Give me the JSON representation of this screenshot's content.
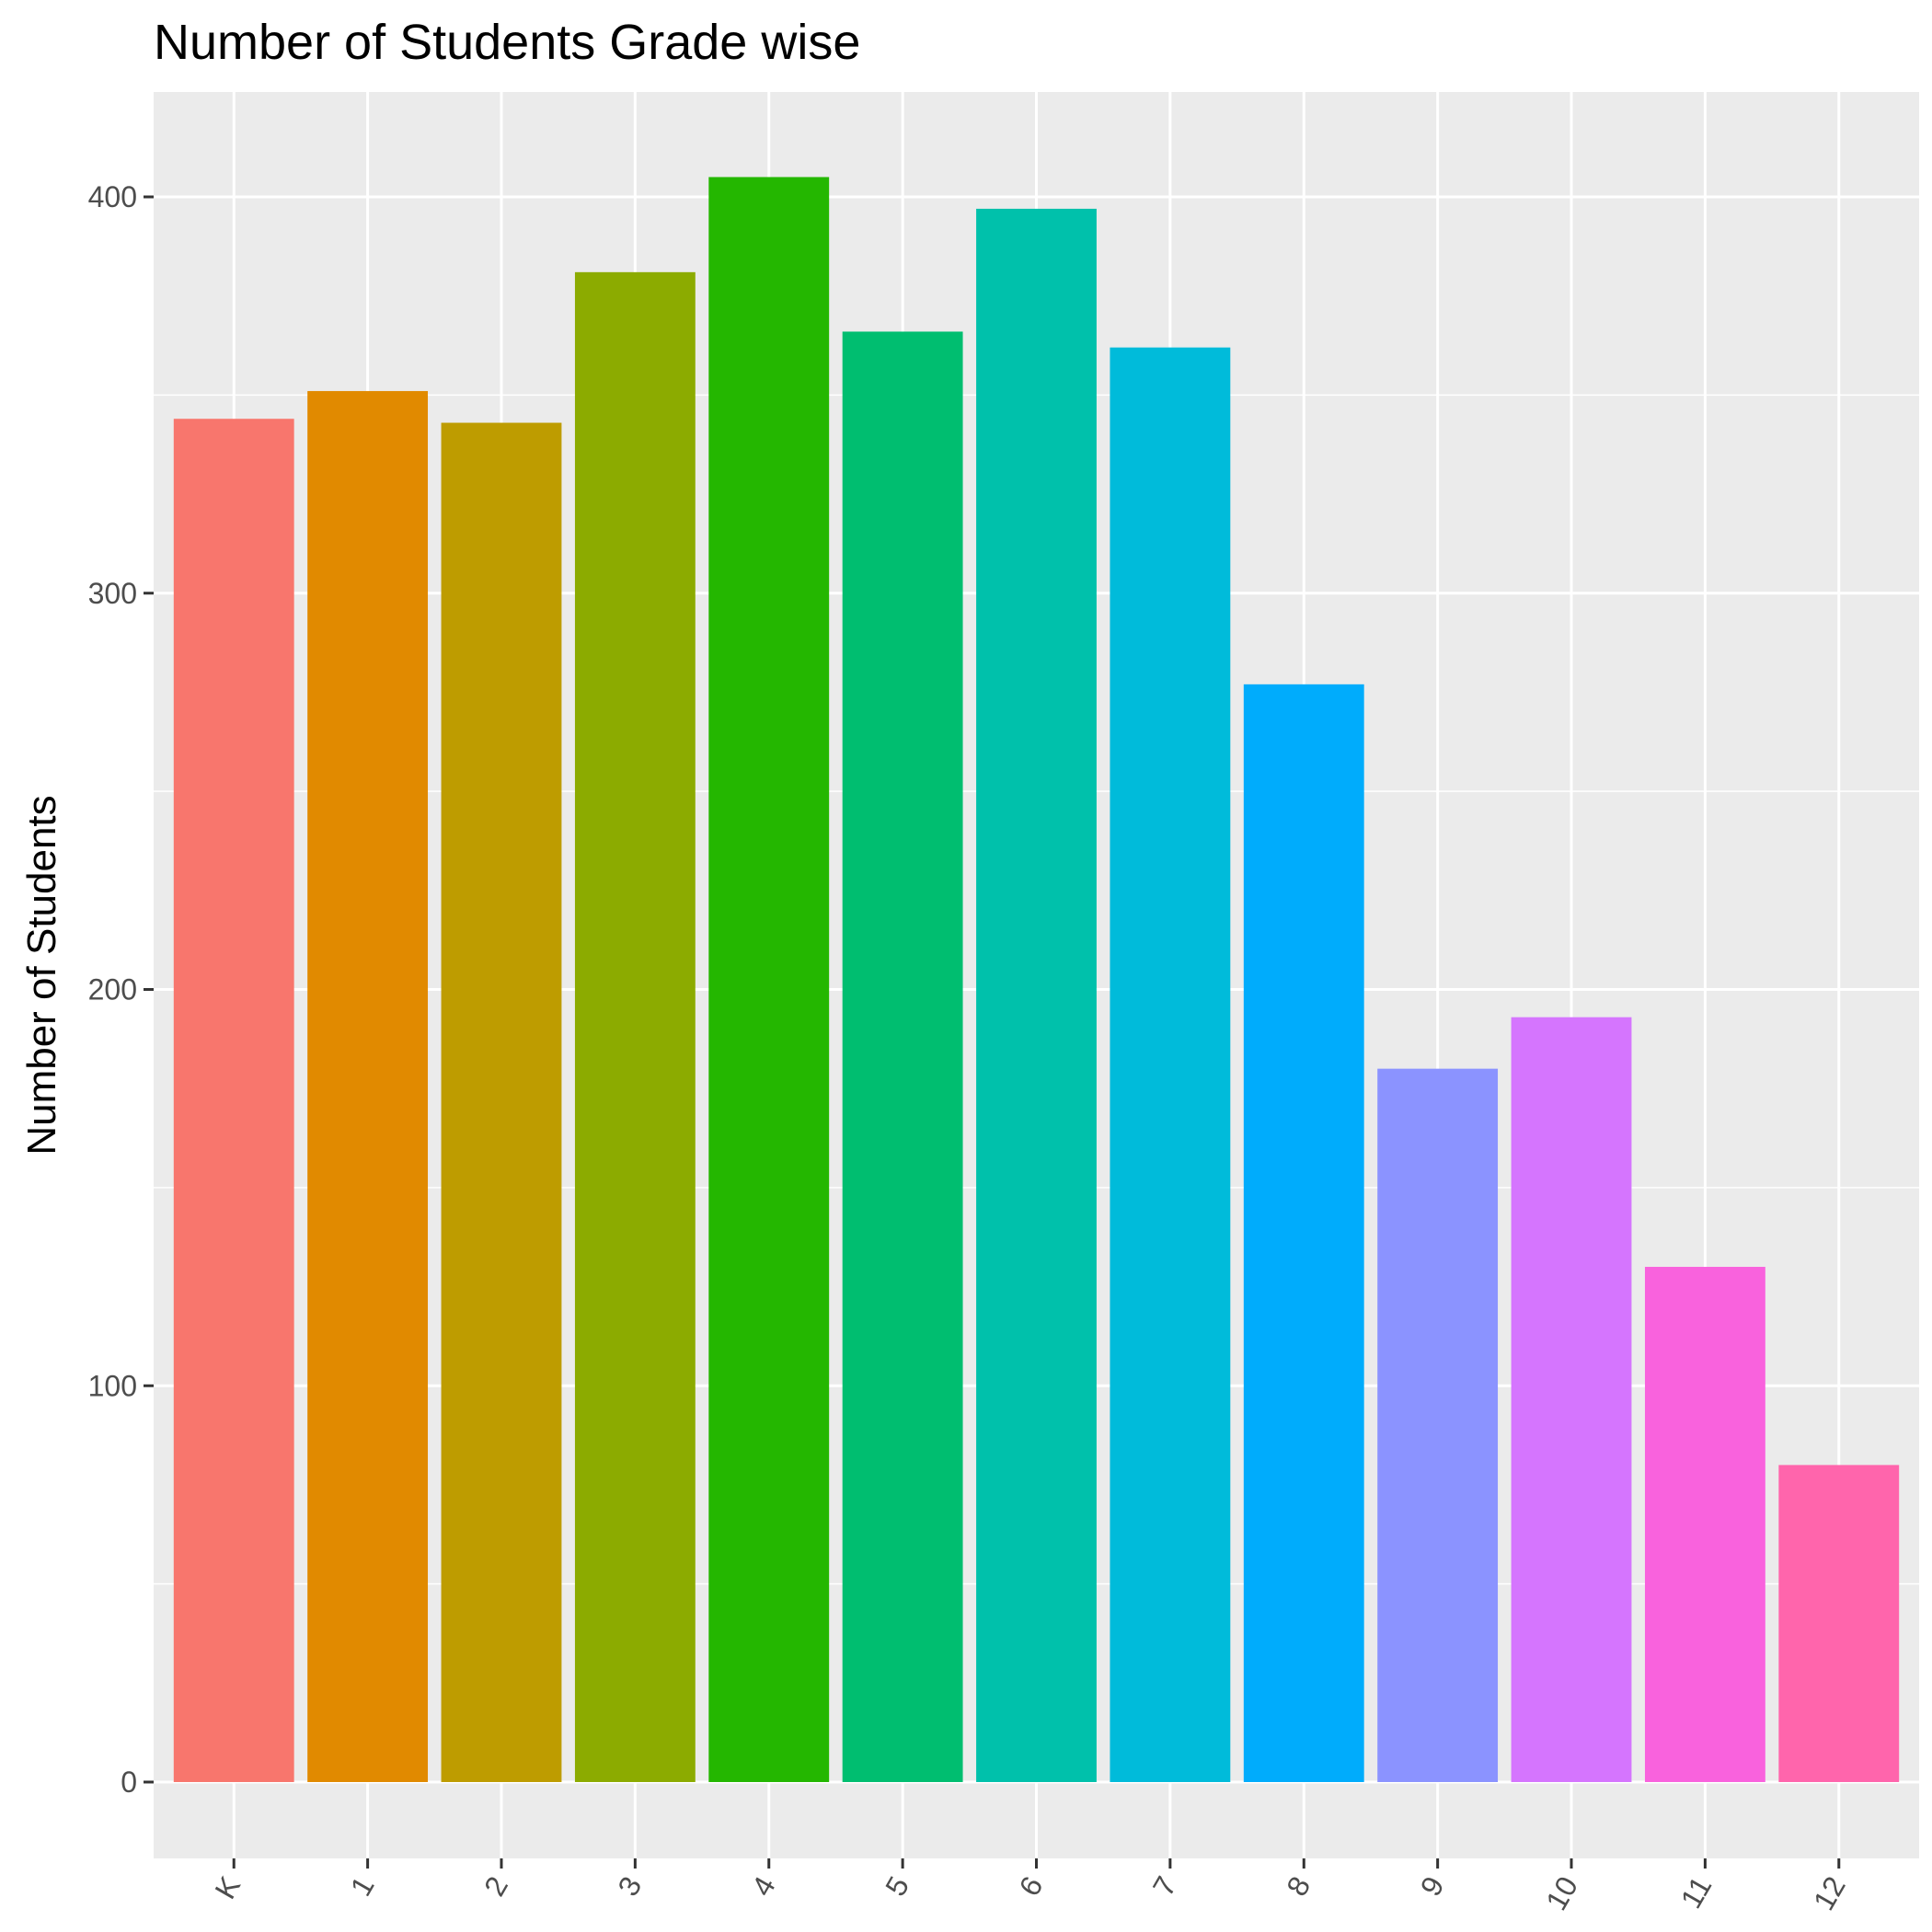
{
  "chart_data": {
    "type": "bar",
    "title": "Number of Students Grade wise",
    "xlabel": "",
    "ylabel": "Number of Students",
    "categories": [
      "K",
      "1",
      "2",
      "3",
      "4",
      "5",
      "6",
      "7",
      "8",
      "9",
      "10",
      "11",
      "12"
    ],
    "values": [
      344,
      351,
      343,
      381,
      405,
      366,
      397,
      362,
      277,
      180,
      193,
      130,
      80
    ],
    "colors": [
      "#F8766D",
      "#E18A00",
      "#BE9C00",
      "#8CAB00",
      "#24B700",
      "#00BE70",
      "#00C1AB",
      "#00BBDA",
      "#00ACFC",
      "#8B93FF",
      "#D575FE",
      "#F962DD",
      "#FF65AC"
    ],
    "y_ticks": [
      0,
      100,
      200,
      300,
      400
    ],
    "ylim": [
      -20,
      425
    ],
    "grid": true,
    "legend": "none",
    "panel_background": "#EBEBEB",
    "gridline_color": "#FFFFFF"
  }
}
